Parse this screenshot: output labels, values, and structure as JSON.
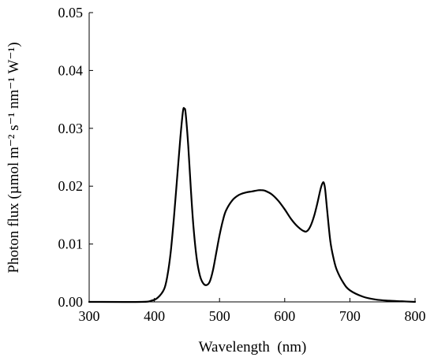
{
  "chart_data": {
    "type": "line",
    "title": "",
    "xlabel": "Wavelength  (nm)",
    "ylabel": "Photon flux (µmol m⁻² s⁻¹ nm⁻¹ W⁻¹)",
    "xlim": [
      300,
      800
    ],
    "ylim": [
      0,
      0.05
    ],
    "x_ticks": [
      300,
      400,
      500,
      600,
      700,
      800
    ],
    "x_tick_labels": [
      "300",
      "400",
      "500",
      "600",
      "700",
      "800"
    ],
    "y_ticks": [
      0,
      0.01,
      0.02,
      0.03,
      0.04,
      0.05
    ],
    "y_tick_labels": [
      "0.00",
      "0.01",
      "0.02",
      "0.03",
      "0.04",
      "0.05"
    ],
    "grid": false,
    "legend": false,
    "line_color": "#000000",
    "series": [
      {
        "x": [
          300,
          380,
          395,
          405,
          415,
          420,
          425,
          430,
          435,
          440,
          444,
          446,
          448,
          452,
          456,
          460,
          465,
          470,
          475,
          480,
          485,
          490,
          495,
          500,
          505,
          510,
          520,
          530,
          540,
          550,
          560,
          565,
          570,
          580,
          590,
          600,
          610,
          620,
          630,
          635,
          640,
          645,
          650,
          655,
          658,
          660,
          662,
          665,
          670,
          675,
          680,
          690,
          700,
          720,
          740,
          760,
          780,
          800
        ],
        "y": [
          0,
          0,
          0.0002,
          0.0007,
          0.0022,
          0.0045,
          0.0085,
          0.0145,
          0.0215,
          0.0285,
          0.033,
          0.0334,
          0.0326,
          0.027,
          0.0195,
          0.013,
          0.0075,
          0.0045,
          0.0032,
          0.0029,
          0.0035,
          0.0055,
          0.0085,
          0.0115,
          0.014,
          0.0158,
          0.0176,
          0.0185,
          0.0189,
          0.0191,
          0.0193,
          0.0193,
          0.0192,
          0.0186,
          0.0175,
          0.016,
          0.0143,
          0.013,
          0.0122,
          0.0123,
          0.0132,
          0.0148,
          0.017,
          0.0195,
          0.0205,
          0.0206,
          0.0195,
          0.016,
          0.0105,
          0.0075,
          0.0055,
          0.0033,
          0.002,
          0.0009,
          0.0004,
          0.0002,
          0.0001,
          0
        ]
      }
    ]
  }
}
